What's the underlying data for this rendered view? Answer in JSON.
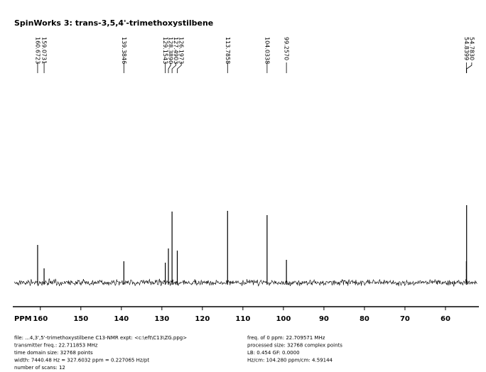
{
  "chart_data": {
    "type": "spectrum",
    "title": "SpinWorks 3: trans-3,5,4'-trimethoxystilbene",
    "xlabel": "PPM",
    "x": [
      160.6723,
      159.0731,
      139.3846,
      129.1543,
      128.389,
      127.4903,
      126.1973,
      113.7858,
      104.0338,
      99.257,
      54.8399,
      54.783
    ],
    "x_labels": [
      "160.6723",
      "159.0731",
      "139.3846",
      "129.1543",
      "128.3890",
      "127.4903",
      "126.1973",
      "113.7858",
      "104.0338",
      "99.2570",
      "54.8399",
      "54.7830"
    ],
    "values": [
      53,
      20,
      30,
      28,
      48,
      100,
      45,
      101,
      95,
      32,
      30,
      109
    ],
    "color": "#000000",
    "xlim": [
      166.8,
      51.75
    ],
    "ylim": [
      -34,
      358
    ],
    "xticks": [
      160,
      150,
      140,
      130,
      120,
      110,
      100,
      90,
      80,
      70,
      60
    ],
    "info": {
      "left": [
        "file: ...4,3',5'-trimethoxystilbene C13-NMR   expt: <c:\\eft\\C13\\ZG.ppg>",
        "transmitter freq.: 22.711853 MHz",
        "time domain size: 32768 points",
        "width: 7440.48 Hz = 327.6032 ppm = 0.227065 Hz/pt",
        "number of scans: 12"
      ],
      "right": [
        "freq. of 0 ppm: 22.709571 MHz",
        "processed size: 32768 complex points",
        "LB: 0.454   GF: 0.0000",
        "Hz/cm: 104.280    ppm/cm: 4.59144"
      ]
    }
  }
}
